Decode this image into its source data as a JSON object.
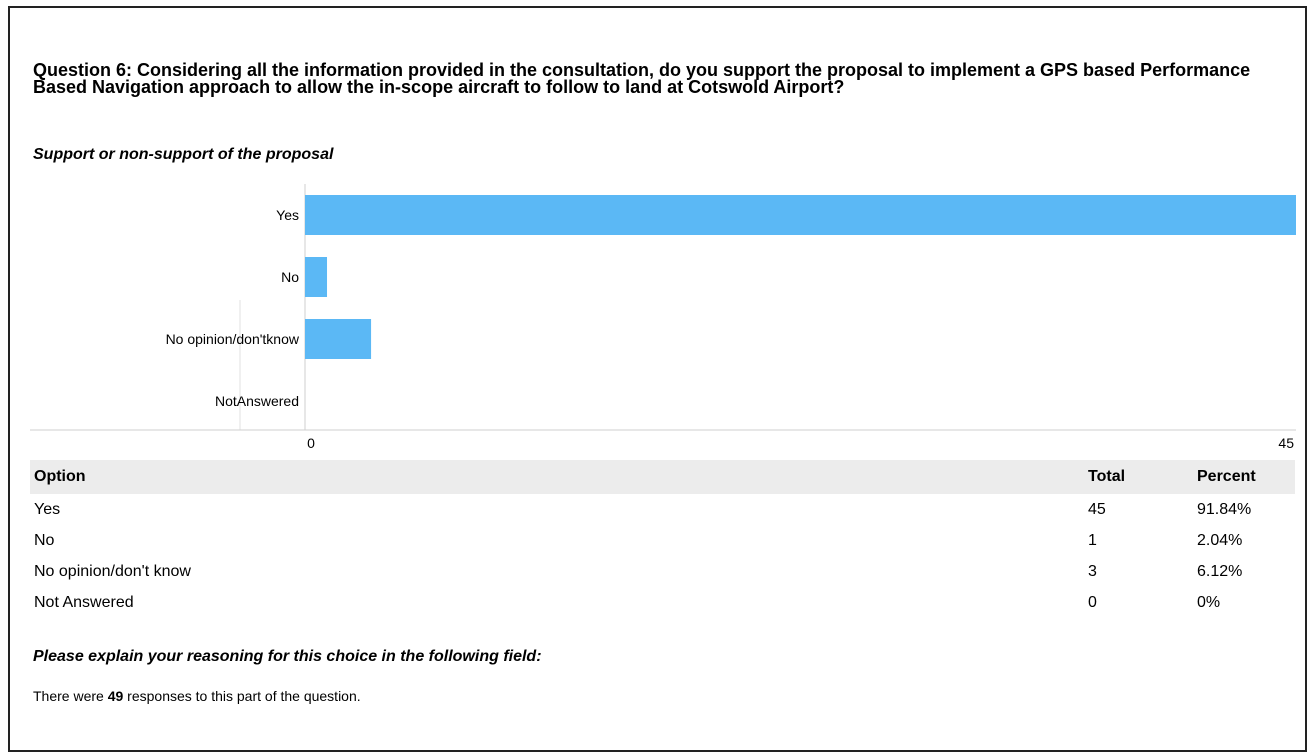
{
  "question": "Question 6: Considering all the information provided in the consultation, do you support the proposal to implement a GPS based Performance Based Navigation approach to allow the in-scope aircraft to follow to land at Cotswold Airport?",
  "subtitle": "Support or non-support of the proposal",
  "chart_data": {
    "type": "bar",
    "orientation": "horizontal",
    "categories": [
      "Yes",
      "No",
      "No opinion/don't know",
      "Not Answered"
    ],
    "category_labels": [
      "Yes",
      "No",
      "No opinion/don'tknow",
      "NotAnswered"
    ],
    "values": [
      45,
      1,
      3,
      0
    ],
    "xlim": [
      0,
      45
    ],
    "xticks": [
      "0",
      "45"
    ],
    "bar_color": "#5bb8f5",
    "grid": false,
    "legend": "none"
  },
  "table": {
    "headers": {
      "option": "Option",
      "total": "Total",
      "percent": "Percent"
    },
    "rows": [
      {
        "option": "Yes",
        "total": "45",
        "percent": "91.84%"
      },
      {
        "option": "No",
        "total": "1",
        "percent": "2.04%"
      },
      {
        "option": "No opinion/don't know",
        "total": "3",
        "percent": "6.12%"
      },
      {
        "option": "Not Answered",
        "total": "0",
        "percent": "0%"
      }
    ]
  },
  "explain": "Please explain your reasoning for this choice in the following field:",
  "responses": {
    "prefix": "There were ",
    "count": "49",
    "suffix": " responses to this part of the question."
  }
}
